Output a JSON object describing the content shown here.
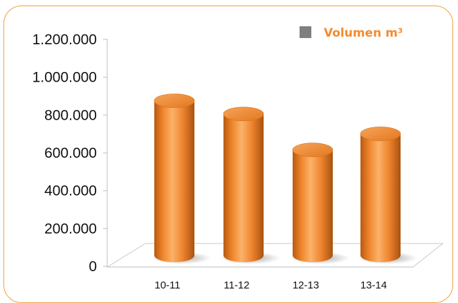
{
  "chart_data": {
    "type": "bar",
    "style": "3d-cylinder",
    "categories": [
      "10-11",
      "11-12",
      "12-13",
      "13-14"
    ],
    "series": [
      {
        "name": "Volumen m³",
        "values": [
          905000,
          835000,
          645000,
          730000
        ],
        "color": "#f58a2d"
      }
    ],
    "yticks": [
      "0",
      "200.000",
      "400.000",
      "600.000",
      "800.000",
      "1.000.000",
      "1.200.000"
    ],
    "ylim": [
      0,
      1200000
    ],
    "legend": {
      "label": "Volumen m³",
      "position": "top-right",
      "text_color": "#f58a2d",
      "swatch_color": "#7f7f7f"
    },
    "grid": false,
    "border_color": "#f0a040"
  }
}
